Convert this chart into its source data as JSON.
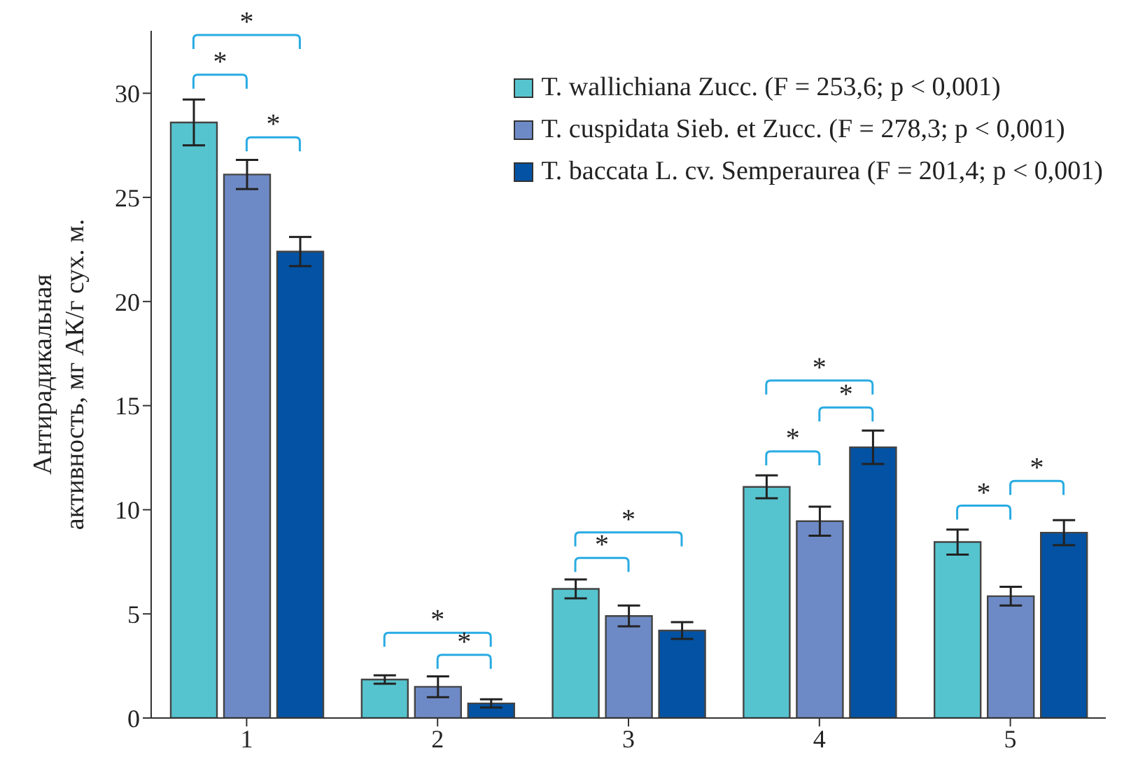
{
  "chart_data": {
    "type": "bar",
    "ylabel": "Антирадикальная активность, мг АК/г сух. м.",
    "categories": [
      "1",
      "2",
      "3",
      "4",
      "5"
    ],
    "series": [
      {
        "name": "T. wallichiana Zucc. (F = 253,6; p < 0,001)",
        "color": "#56c4cf",
        "values": [
          28.6,
          1.85,
          6.2,
          11.1,
          8.45
        ],
        "errors": [
          1.1,
          0.2,
          0.45,
          0.55,
          0.6
        ]
      },
      {
        "name": "T. cuspidata Sieb. et Zucc. (F = 278,3; p < 0,001)",
        "color": "#6e8ac6",
        "values": [
          26.1,
          1.5,
          4.9,
          9.45,
          5.85
        ],
        "errors": [
          0.7,
          0.5,
          0.5,
          0.7,
          0.45
        ]
      },
      {
        "name": "T. baccata L. cv. Semperaurea (F = 201,4; p < 0,001)",
        "color": "#0352a3",
        "values": [
          22.4,
          0.7,
          4.2,
          13.0,
          8.9
        ],
        "errors": [
          0.7,
          0.2,
          0.4,
          0.8,
          0.6
        ]
      }
    ],
    "ylim": [
      0,
      33
    ],
    "yticks": [
      0,
      5,
      10,
      15,
      20,
      25,
      30
    ],
    "legend": "top right",
    "annotations": [
      "*",
      "*",
      "*",
      "*",
      "*",
      "*",
      "*",
      "*",
      "*",
      "*",
      "*",
      "*"
    ]
  }
}
